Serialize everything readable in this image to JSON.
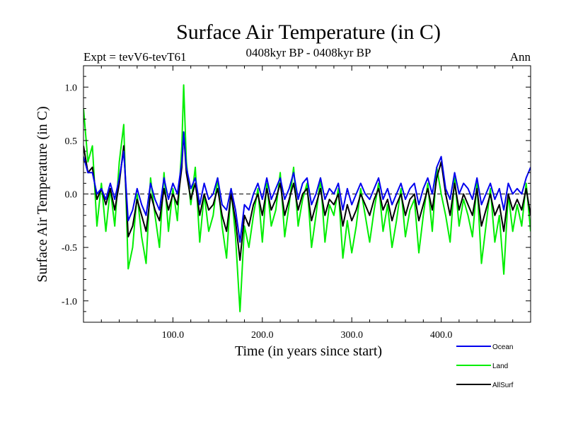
{
  "chart_data": {
    "type": "line",
    "title": "Surface Air Temperature (in C)",
    "left_header": "Expt = tevV6-tevT61",
    "center_header": "0408kyr BP - 0408kyr BP",
    "right_header": "Ann",
    "xlabel": "Time (in years since start)",
    "ylabel": "Surface Air Temperature (in C)",
    "xlim": [
      0,
      500
    ],
    "ylim": [
      -1.2,
      1.2
    ],
    "x_ticks": [
      100,
      200,
      300,
      400
    ],
    "x_tick_labels": [
      "100.0",
      "200.0",
      "300.0",
      "400.0"
    ],
    "y_ticks": [
      -1.0,
      -0.5,
      0.0,
      0.5,
      1.0
    ],
    "y_tick_labels": [
      "-1.0",
      "-0.5",
      "0.0",
      "0.5",
      "1.0"
    ],
    "zero_line": "dashed",
    "grid": false,
    "legend_position": "bottom-right",
    "series": [
      {
        "name": "Land",
        "color": "#00ee00",
        "x": [
          0,
          5,
          10,
          15,
          20,
          25,
          30,
          35,
          40,
          45,
          50,
          55,
          60,
          65,
          70,
          75,
          80,
          85,
          90,
          95,
          100,
          105,
          110,
          112,
          115,
          120,
          125,
          130,
          135,
          140,
          145,
          150,
          155,
          160,
          165,
          170,
          175,
          180,
          185,
          190,
          195,
          200,
          205,
          210,
          215,
          220,
          225,
          230,
          235,
          240,
          245,
          250,
          255,
          260,
          265,
          270,
          275,
          280,
          285,
          290,
          295,
          300,
          305,
          310,
          315,
          320,
          325,
          330,
          335,
          340,
          345,
          350,
          355,
          360,
          365,
          370,
          375,
          380,
          385,
          390,
          395,
          400,
          405,
          410,
          415,
          420,
          425,
          430,
          435,
          440,
          445,
          450,
          455,
          460,
          465,
          470,
          475,
          480,
          485,
          490,
          495,
          500
        ],
        "values": [
          0.8,
          0.3,
          0.45,
          -0.3,
          0.1,
          -0.35,
          0.05,
          -0.3,
          0.3,
          0.65,
          -0.7,
          -0.5,
          0.0,
          -0.4,
          -0.65,
          0.15,
          -0.2,
          -0.5,
          0.2,
          -0.35,
          0.05,
          -0.25,
          0.45,
          1.02,
          0.3,
          -0.1,
          0.25,
          -0.45,
          0.0,
          -0.35,
          -0.2,
          0.15,
          -0.3,
          -0.6,
          0.05,
          -0.4,
          -1.1,
          -0.3,
          -0.5,
          -0.2,
          0.05,
          -0.45,
          0.1,
          -0.3,
          -0.15,
          0.2,
          -0.4,
          -0.1,
          0.25,
          -0.3,
          -0.05,
          0.1,
          -0.5,
          -0.2,
          0.15,
          -0.45,
          -0.1,
          -0.2,
          0.05,
          -0.6,
          -0.25,
          -0.55,
          -0.3,
          0.05,
          -0.2,
          -0.45,
          -0.15,
          0.1,
          -0.35,
          -0.1,
          -0.5,
          -0.25,
          0.05,
          -0.4,
          -0.15,
          -0.05,
          -0.55,
          -0.2,
          0.1,
          -0.35,
          0.25,
          0.0,
          -0.2,
          -0.45,
          0.15,
          -0.3,
          -0.05,
          -0.2,
          -0.4,
          0.1,
          -0.65,
          -0.3,
          0.05,
          -0.45,
          -0.2,
          -0.75,
          0.0,
          -0.35,
          -0.1,
          -0.3,
          0.1,
          -0.35
        ]
      },
      {
        "name": "AllSurf",
        "color": "#000000",
        "x": [
          0,
          5,
          10,
          15,
          20,
          25,
          30,
          35,
          40,
          45,
          50,
          55,
          60,
          65,
          70,
          75,
          80,
          85,
          90,
          95,
          100,
          105,
          110,
          112,
          115,
          120,
          125,
          130,
          135,
          140,
          145,
          150,
          155,
          160,
          165,
          170,
          175,
          180,
          185,
          190,
          195,
          200,
          205,
          210,
          215,
          220,
          225,
          230,
          235,
          240,
          245,
          250,
          255,
          260,
          265,
          270,
          275,
          280,
          285,
          290,
          295,
          300,
          305,
          310,
          315,
          320,
          325,
          330,
          335,
          340,
          345,
          350,
          355,
          360,
          365,
          370,
          375,
          380,
          385,
          390,
          395,
          400,
          405,
          410,
          415,
          420,
          425,
          430,
          435,
          440,
          445,
          450,
          455,
          460,
          465,
          470,
          475,
          480,
          485,
          490,
          495,
          500
        ],
        "values": [
          0.45,
          0.2,
          0.25,
          -0.05,
          0.05,
          -0.1,
          0.05,
          -0.15,
          0.1,
          0.45,
          -0.4,
          -0.3,
          -0.05,
          -0.2,
          -0.35,
          0.0,
          -0.15,
          -0.25,
          0.05,
          -0.15,
          0.0,
          -0.1,
          0.25,
          0.58,
          0.2,
          -0.05,
          0.1,
          -0.2,
          0.0,
          -0.15,
          -0.1,
          0.05,
          -0.2,
          -0.35,
          0.0,
          -0.25,
          -0.62,
          -0.2,
          -0.3,
          -0.1,
          0.0,
          -0.2,
          0.05,
          -0.15,
          -0.05,
          0.1,
          -0.2,
          -0.05,
          0.1,
          -0.15,
          0.0,
          0.05,
          -0.25,
          -0.1,
          0.05,
          -0.2,
          -0.05,
          -0.1,
          0.0,
          -0.3,
          -0.1,
          -0.25,
          -0.15,
          0.0,
          -0.1,
          -0.2,
          -0.05,
          0.05,
          -0.15,
          -0.05,
          -0.25,
          -0.1,
          0.0,
          -0.2,
          -0.05,
          0.0,
          -0.25,
          -0.1,
          0.05,
          -0.15,
          0.15,
          0.3,
          0.0,
          -0.2,
          0.1,
          -0.15,
          0.0,
          -0.1,
          -0.2,
          0.05,
          -0.3,
          -0.15,
          0.0,
          -0.2,
          -0.1,
          -0.35,
          0.0,
          -0.15,
          -0.05,
          -0.15,
          0.05,
          -0.2
        ]
      },
      {
        "name": "Ocean",
        "color": "#0000ee",
        "x": [
          0,
          5,
          10,
          15,
          20,
          25,
          30,
          35,
          40,
          45,
          50,
          55,
          60,
          65,
          70,
          75,
          80,
          85,
          90,
          95,
          100,
          105,
          110,
          112,
          115,
          120,
          125,
          130,
          135,
          140,
          145,
          150,
          155,
          160,
          165,
          170,
          175,
          180,
          185,
          190,
          195,
          200,
          205,
          210,
          215,
          220,
          225,
          230,
          235,
          240,
          245,
          250,
          255,
          260,
          265,
          270,
          275,
          280,
          285,
          290,
          295,
          300,
          305,
          310,
          315,
          320,
          325,
          330,
          335,
          340,
          345,
          350,
          355,
          360,
          365,
          370,
          375,
          380,
          385,
          390,
          395,
          400,
          405,
          410,
          415,
          420,
          425,
          430,
          435,
          440,
          445,
          450,
          455,
          460,
          465,
          470,
          475,
          480,
          485,
          490,
          495,
          500
        ],
        "values": [
          0.35,
          0.2,
          0.2,
          0.0,
          0.05,
          -0.05,
          0.1,
          -0.05,
          0.15,
          0.4,
          -0.25,
          -0.15,
          0.05,
          -0.1,
          -0.2,
          0.1,
          -0.05,
          -0.15,
          0.15,
          -0.05,
          0.1,
          0.0,
          0.3,
          0.58,
          0.25,
          0.05,
          0.15,
          -0.1,
          0.1,
          -0.05,
          0.0,
          0.15,
          -0.1,
          -0.15,
          0.05,
          -0.15,
          -0.45,
          -0.1,
          -0.15,
          0.0,
          0.1,
          -0.05,
          0.15,
          -0.05,
          0.05,
          0.15,
          -0.05,
          0.05,
          0.2,
          -0.05,
          0.1,
          0.15,
          -0.1,
          0.0,
          0.15,
          -0.05,
          0.05,
          0.0,
          0.1,
          -0.15,
          0.05,
          -0.1,
          0.0,
          0.1,
          0.0,
          -0.05,
          0.05,
          0.15,
          -0.05,
          0.05,
          -0.1,
          0.0,
          0.1,
          -0.05,
          0.05,
          0.1,
          -0.1,
          0.05,
          0.15,
          0.0,
          0.25,
          0.35,
          0.05,
          -0.05,
          0.2,
          0.0,
          0.1,
          0.05,
          -0.05,
          0.15,
          -0.1,
          0.0,
          0.1,
          -0.05,
          0.05,
          -0.15,
          0.1,
          0.0,
          0.05,
          0.0,
          0.15,
          0.25
        ]
      }
    ]
  }
}
